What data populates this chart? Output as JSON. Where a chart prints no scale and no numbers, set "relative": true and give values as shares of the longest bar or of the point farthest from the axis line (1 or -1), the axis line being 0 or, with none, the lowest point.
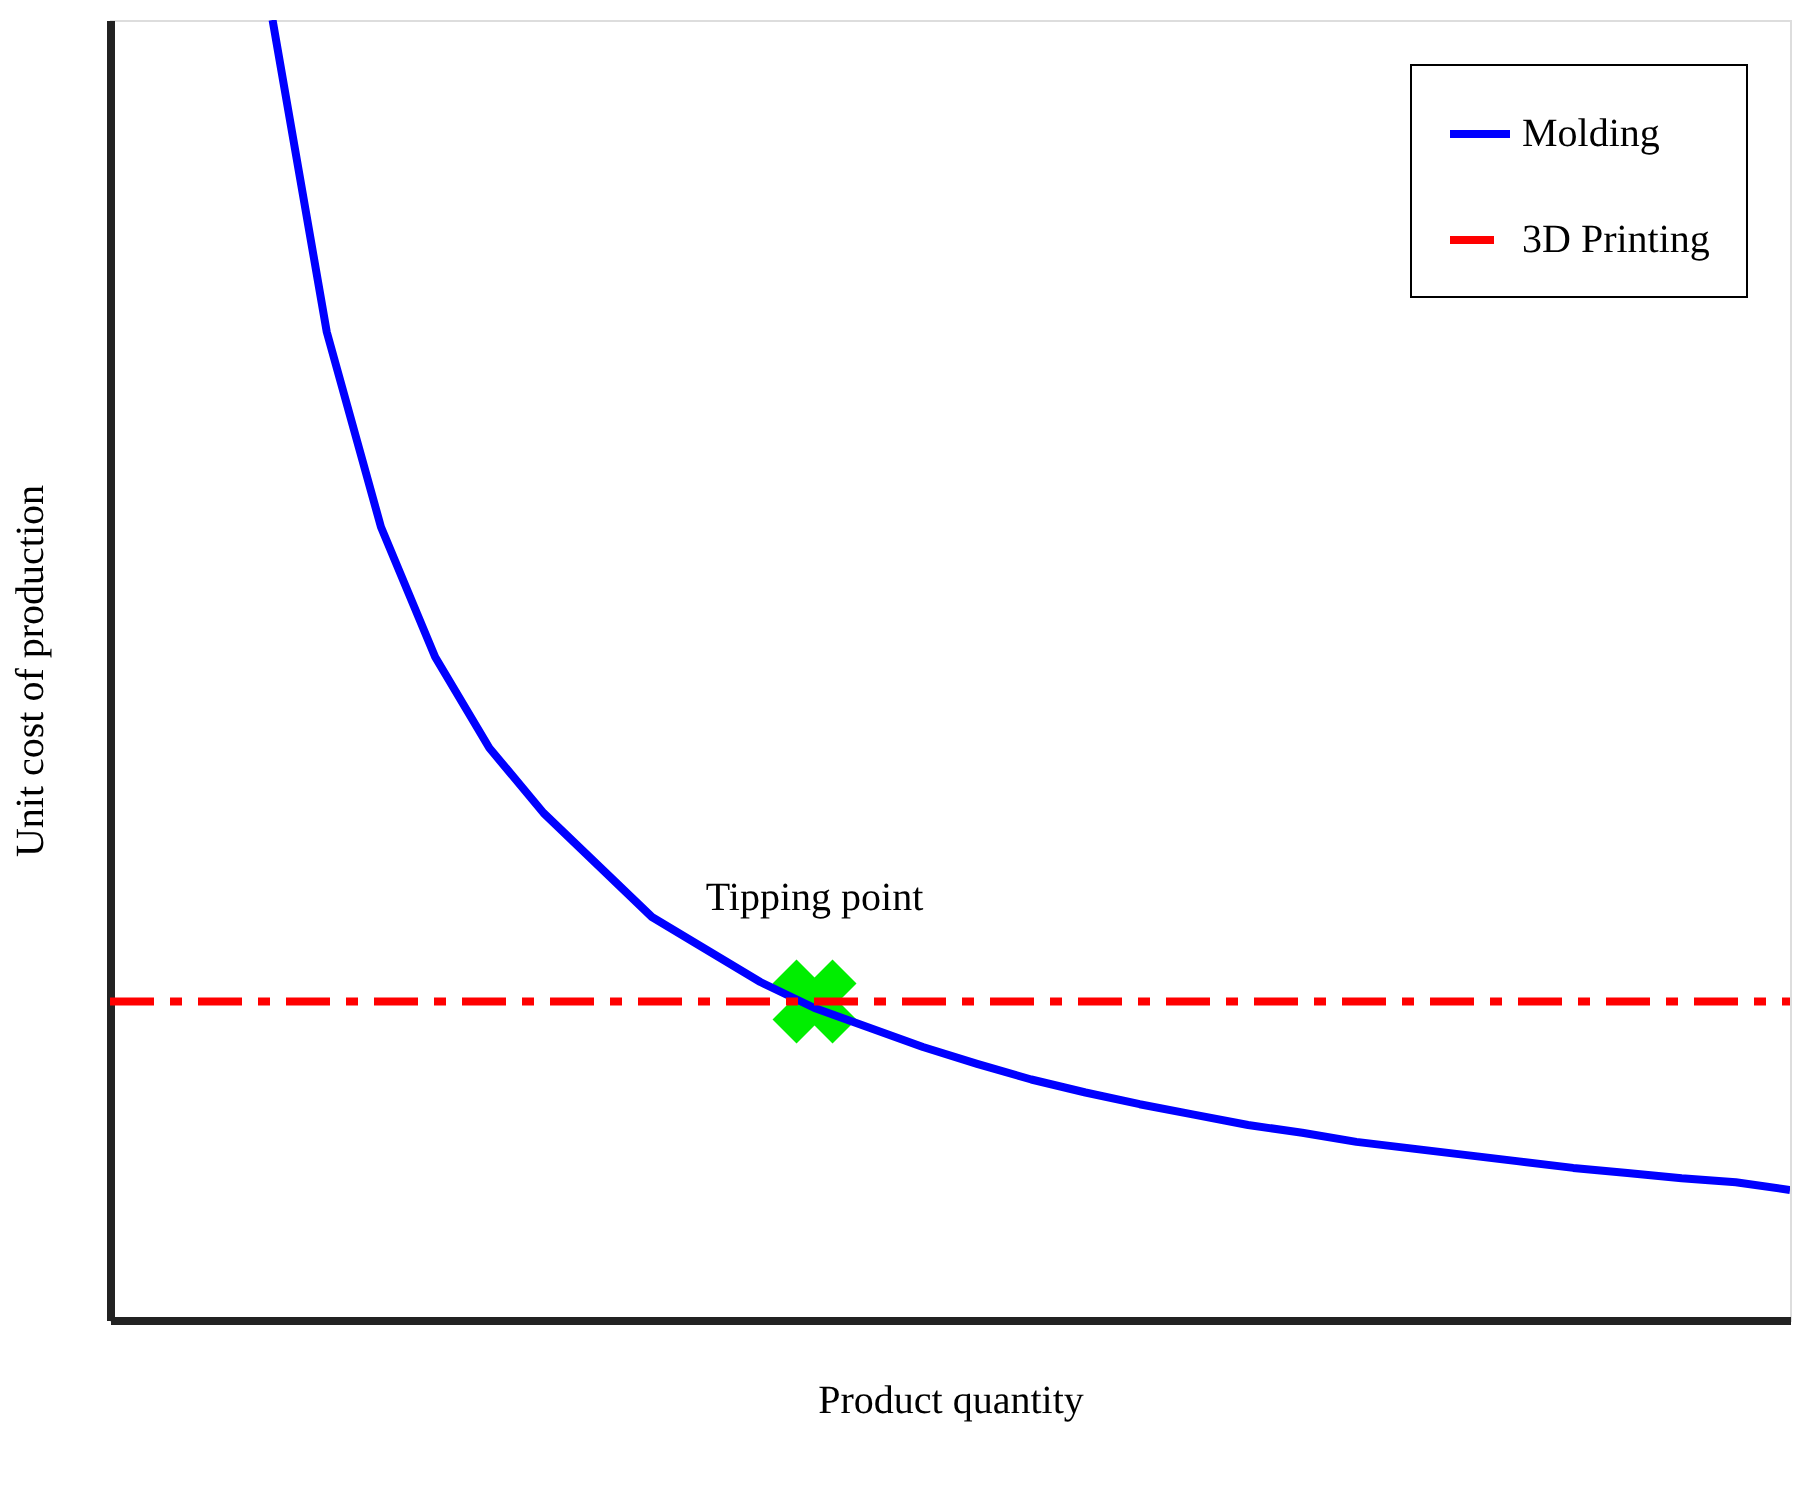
{
  "chart_data": {
    "type": "line",
    "relative": true,
    "xlabel": "Product quantity",
    "ylabel": "Unit cost of production",
    "tick_labels": false,
    "grid": false,
    "legend": "top right",
    "categories": [
      null,
      null,
      null,
      null,
      null,
      null,
      null,
      null,
      null,
      null,
      null,
      null,
      null,
      null,
      null,
      null,
      null,
      null,
      null,
      null,
      null,
      null,
      null,
      null,
      null,
      null,
      null,
      null,
      null,
      null,
      null,
      null
    ],
    "series": [
      {
        "name": "Molding",
        "color": "#0000ff",
        "line_style": "solid",
        "values": [
          null,
          null,
          null,
          1,
          0.76,
          0.61,
          0.51,
          0.44,
          0.39,
          0.35,
          0.31,
          0.285,
          0.26,
          0.24,
          0.225,
          0.21,
          0.197,
          0.185,
          0.175,
          0.166,
          0.158,
          0.15,
          0.144,
          0.137,
          0.132,
          0.127,
          0.122,
          0.117,
          0.113,
          0.109,
          0.106,
          0.1
        ]
      },
      {
        "name": "3D Printing",
        "color": "#ff0000",
        "line_style": "dashed",
        "values": [
          0.245,
          0.245,
          0.245,
          0.245,
          0.245,
          0.245,
          0.245,
          0.245,
          0.245,
          0.245,
          0.245,
          0.245,
          0.245,
          0.245,
          0.245,
          0.245,
          0.245,
          0.245,
          0.245,
          0.245,
          0.245,
          0.245,
          0.245,
          0.245,
          0.245,
          0.245,
          0.245,
          0.245,
          0.245,
          0.245,
          0.245,
          0.245
        ]
      }
    ],
    "annotations": [
      {
        "text": "Tipping point",
        "y": 0.245
      }
    ]
  }
}
